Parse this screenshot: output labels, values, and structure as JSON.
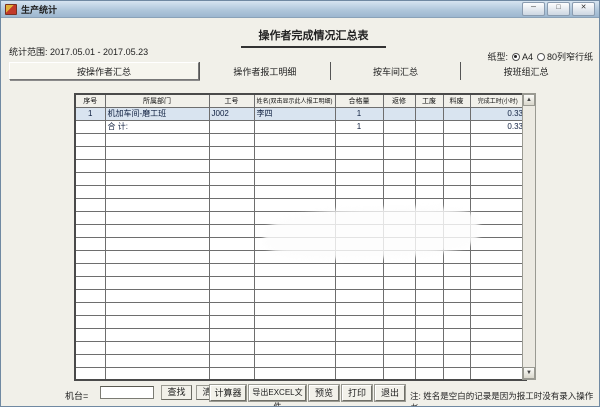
{
  "window": {
    "title": "生产统计",
    "controls": [
      {
        "name": "minimize",
        "glyph": "─"
      },
      {
        "name": "maximize",
        "glyph": "□"
      },
      {
        "name": "close",
        "glyph": "✕"
      }
    ]
  },
  "header": {
    "report_title": "操作者完成情况汇总表",
    "stats_range": "统计范围: 2017.05.01 - 2017.05.23",
    "paper_label": "纸型:",
    "paper_options": [
      {
        "label": "A4",
        "selected": true
      },
      {
        "label": "80列窄行纸",
        "selected": false
      }
    ]
  },
  "tabs": [
    {
      "label": "按操作者汇总",
      "active": true
    },
    {
      "label": "操作者报工明细",
      "active": false
    },
    {
      "label": "按车间汇总",
      "active": false
    },
    {
      "label": "按班组汇总",
      "active": false
    }
  ],
  "table": {
    "columns": [
      "序号",
      "所属部门",
      "工号",
      "姓名(双击显示此人报工明细)",
      "合格量",
      "返修",
      "工废",
      "料废",
      "完成工时(小时)"
    ],
    "rows": [
      {
        "cells": [
          "1",
          "机加车间-磨工班",
          "J002",
          "李四",
          "1",
          "",
          "",
          "",
          "0.33"
        ],
        "highlight": true
      },
      {
        "cells": [
          "",
          "合  计:",
          "",
          "",
          "1",
          "",
          "",
          "",
          "0.33"
        ],
        "highlight": false
      }
    ],
    "empty_row_count": 19
  },
  "icons": {
    "scroll_up": "▲",
    "scroll_down": "▼"
  },
  "footer": {
    "machine_label": "机台=",
    "machine_value": "",
    "find_button": "查找",
    "clear_button": "清空",
    "calculator_button": "计算器",
    "export_button": "导出EXCEL文件",
    "preview_button": "预览",
    "print_button": "打印",
    "exit_button": "退出",
    "note": "注: 姓名是空白的记录是因为报工时没有录入操作者"
  },
  "colors": {
    "titlebar_top": "#d6e4f0",
    "titlebar_bottom": "#9db7cf",
    "highlight_row": "#d9e4f0",
    "window_bg": "#f1f0e9",
    "grid_line": "#6e6e6e"
  }
}
